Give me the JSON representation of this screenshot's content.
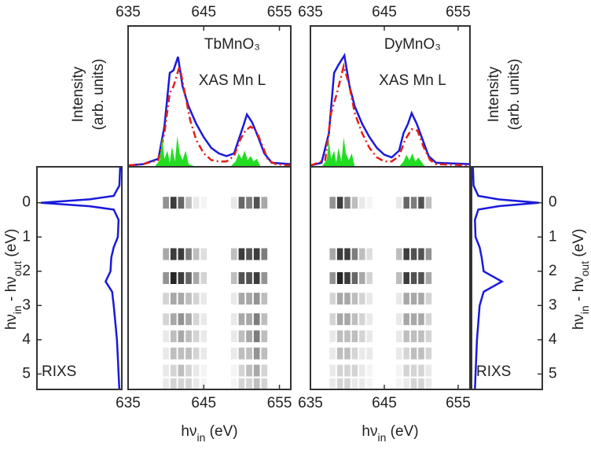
{
  "chart_data": [
    {
      "type": "xas",
      "title": [
        "TbMnO₃",
        "XAS Mn L"
      ],
      "ylabel": [
        "Intensity",
        "(arb. units)"
      ],
      "ylabel_side": "left",
      "xlim": [
        635,
        656.5
      ],
      "ylim": [
        0,
        1.05
      ],
      "xticks": [
        635,
        645,
        655
      ],
      "xtick_side": "top",
      "series": [
        {
          "color": "#1a1adb",
          "dashed": false,
          "fill": false,
          "x": [
            635,
            637,
            639,
            639.8,
            640.5,
            641,
            641.6,
            642.2,
            643,
            644,
            645,
            646,
            647,
            648,
            649,
            649.6,
            650.2,
            650.7,
            651.4,
            652.2,
            653,
            654,
            656.5
          ],
          "values": [
            0.01,
            0.02,
            0.06,
            0.3,
            0.7,
            0.72,
            0.82,
            0.6,
            0.45,
            0.32,
            0.22,
            0.14,
            0.1,
            0.08,
            0.1,
            0.2,
            0.3,
            0.39,
            0.33,
            0.22,
            0.1,
            0.03,
            0.02
          ]
        },
        {
          "color": "#e0201b",
          "dashed": true,
          "fill": false,
          "x": [
            635,
            637,
            639,
            639.8,
            640.5,
            641,
            641.8,
            642.5,
            643.2,
            644,
            645,
            646,
            647,
            648,
            649,
            649.8,
            650.5,
            651.2,
            652,
            652.8,
            653.5,
            654.5,
            656.5
          ],
          "values": [
            0.01,
            0.02,
            0.05,
            0.25,
            0.55,
            0.6,
            0.75,
            0.55,
            0.35,
            0.2,
            0.1,
            0.05,
            0.04,
            0.04,
            0.08,
            0.2,
            0.27,
            0.3,
            0.26,
            0.15,
            0.05,
            0.02,
            0.01
          ]
        },
        {
          "color": "#22dd22",
          "dashed": false,
          "fill": true,
          "x": [
            638.5,
            639.2,
            639.5,
            639.8,
            640.2,
            640.5,
            640.8,
            641.2,
            641.5,
            641.8,
            642.2,
            642.6,
            643,
            644,
            648.5,
            649.2,
            649.6,
            650,
            650.4,
            650.8,
            651.2,
            651.6,
            652,
            652.5
          ],
          "values": [
            0,
            0.05,
            0.22,
            0.06,
            0.12,
            0.03,
            0.15,
            0.04,
            0.23,
            0.1,
            0.05,
            0.12,
            0.02,
            0,
            0,
            0.04,
            0.1,
            0.06,
            0.12,
            0.05,
            0.08,
            0.04,
            0.06,
            0
          ]
        }
      ]
    },
    {
      "type": "heatmap",
      "xlim": [
        635,
        656.5
      ],
      "ylim": [
        -1.05,
        5.45
      ],
      "y_inverted": true,
      "xticks": [
        635,
        645,
        655
      ],
      "xlabel": [
        {
          "text": "hν"
        },
        {
          "text": "in",
          "sub": true
        },
        {
          "text": " (eV)"
        }
      ],
      "x": [
        640,
        641,
        642,
        643,
        644,
        645,
        649,
        650,
        651,
        652,
        653
      ],
      "y": [
        0,
        1.5,
        2.2,
        2.8,
        3.4,
        3.9,
        4.4,
        4.9,
        5.3
      ],
      "z": [
        [
          0.5,
          0.9,
          0.7,
          0.3,
          0.1,
          0.05,
          0.1,
          0.7,
          0.6,
          0.8,
          0.4
        ],
        [
          0.4,
          0.9,
          0.9,
          0.6,
          0.3,
          0.15,
          0.3,
          0.9,
          0.8,
          0.9,
          0.6
        ],
        [
          0.5,
          1.0,
          0.9,
          0.7,
          0.4,
          0.2,
          0.3,
          0.8,
          0.8,
          0.9,
          0.5
        ],
        [
          0.2,
          0.4,
          0.4,
          0.3,
          0.2,
          0.1,
          0.1,
          0.4,
          0.4,
          0.5,
          0.3
        ],
        [
          0.2,
          0.4,
          0.5,
          0.4,
          0.2,
          0.1,
          0.1,
          0.4,
          0.4,
          0.6,
          0.3
        ],
        [
          0.1,
          0.3,
          0.4,
          0.3,
          0.2,
          0.1,
          0.1,
          0.3,
          0.4,
          0.6,
          0.3
        ],
        [
          0.1,
          0.3,
          0.3,
          0.3,
          0.2,
          0.1,
          0.1,
          0.3,
          0.3,
          0.5,
          0.3
        ],
        [
          0.1,
          0.2,
          0.3,
          0.2,
          0.1,
          0.05,
          0.05,
          0.2,
          0.3,
          0.4,
          0.2
        ],
        [
          0.1,
          0.2,
          0.2,
          0.2,
          0.1,
          0.05,
          0.05,
          0.2,
          0.2,
          0.3,
          0.2
        ]
      ]
    },
    {
      "type": "profile",
      "text": "RIXS",
      "color": "#1a1adb",
      "xlim": [
        0,
        1.05
      ],
      "x_inverted": true,
      "ylim": [
        -1.05,
        5.45
      ],
      "y_inverted": true,
      "yticks": [
        0,
        1,
        2,
        3,
        4,
        5
      ],
      "ytick_side": "left",
      "ylabel": [
        {
          "text": "hν"
        },
        {
          "text": "in",
          "sub": true
        },
        {
          "text": " - hν"
        },
        {
          "text": "out",
          "sub": true
        },
        {
          "text": " (eV)"
        }
      ],
      "y": [
        -1.05,
        -0.5,
        -0.2,
        -0.1,
        0,
        0.1,
        0.2,
        0.5,
        1.0,
        1.3,
        1.6,
        2.0,
        2.3,
        2.6,
        3.0,
        3.5,
        4.0,
        4.5,
        5.0,
        5.45
      ],
      "values": [
        0.02,
        0.03,
        0.1,
        0.4,
        1.0,
        0.4,
        0.1,
        0.04,
        0.05,
        0.1,
        0.13,
        0.14,
        0.2,
        0.12,
        0.1,
        0.08,
        0.06,
        0.05,
        0.04,
        0.03
      ]
    },
    {
      "type": "xas",
      "title": [
        "DyMnO₃",
        "XAS Mn L"
      ],
      "ylabel": [
        "Intensity",
        "(arb. units)"
      ],
      "ylabel_side": "right",
      "xlim": [
        635,
        656.6
      ],
      "ylim": [
        0,
        1.05
      ],
      "xticks": [
        635,
        645,
        655
      ],
      "xtick_side": "top",
      "series": [
        {
          "color": "#1a1adb",
          "dashed": false,
          "fill": false,
          "x": [
            635,
            636.5,
            637.5,
            638.2,
            638.8,
            639.6,
            640.3,
            641,
            642,
            643,
            644,
            645,
            646,
            647,
            647.6,
            648.2,
            648.7,
            649.4,
            650.2,
            651,
            652,
            656.6
          ],
          "values": [
            0.01,
            0.03,
            0.25,
            0.7,
            0.76,
            0.83,
            0.6,
            0.45,
            0.32,
            0.22,
            0.14,
            0.09,
            0.07,
            0.12,
            0.25,
            0.32,
            0.4,
            0.32,
            0.2,
            0.08,
            0.03,
            0.02
          ]
        },
        {
          "color": "#e0201b",
          "dashed": true,
          "fill": false,
          "x": [
            635,
            637,
            637.8,
            638.6,
            639.5,
            640.2,
            641,
            642,
            643,
            644,
            645,
            646,
            647,
            647.8,
            648.7,
            649.5,
            650.3,
            651.2,
            652,
            656.6
          ],
          "values": [
            0.01,
            0.05,
            0.4,
            0.55,
            0.75,
            0.62,
            0.4,
            0.25,
            0.14,
            0.07,
            0.04,
            0.04,
            0.08,
            0.2,
            0.28,
            0.27,
            0.15,
            0.05,
            0.02,
            0.01
          ]
        },
        {
          "color": "#22dd22",
          "dashed": false,
          "fill": true,
          "x": [
            636.5,
            637.2,
            637.5,
            637.8,
            638.2,
            638.5,
            638.8,
            639.2,
            639.5,
            639.8,
            640.2,
            640.6,
            641,
            647,
            647.6,
            648,
            648.4,
            648.8,
            649.2,
            649.6,
            650,
            650.5
          ],
          "values": [
            0,
            0.05,
            0.2,
            0.06,
            0.12,
            0.03,
            0.14,
            0.04,
            0.22,
            0.1,
            0.05,
            0.1,
            0,
            0,
            0.04,
            0.09,
            0.05,
            0.1,
            0.04,
            0.07,
            0.04,
            0
          ]
        }
      ]
    },
    {
      "type": "heatmap",
      "xlim": [
        635,
        656.6
      ],
      "ylim": [
        -1.05,
        5.45
      ],
      "y_inverted": true,
      "xticks": [
        635,
        645,
        655
      ],
      "xlabel": [
        {
          "text": "hν"
        },
        {
          "text": "in",
          "sub": true
        },
        {
          "text": " (eV)"
        }
      ],
      "x": [
        638,
        639,
        640,
        641,
        642,
        643,
        647,
        648,
        649,
        650,
        651
      ],
      "y": [
        0,
        1.5,
        2.2,
        2.8,
        3.4,
        3.9,
        4.4,
        4.9,
        5.3
      ],
      "z": [
        [
          0.5,
          0.9,
          0.6,
          0.3,
          0.1,
          0.05,
          0.1,
          0.7,
          0.6,
          0.8,
          0.3
        ],
        [
          0.4,
          0.9,
          0.9,
          0.6,
          0.3,
          0.15,
          0.3,
          0.9,
          0.8,
          0.8,
          0.5
        ],
        [
          0.5,
          1.0,
          0.9,
          0.7,
          0.4,
          0.2,
          0.3,
          0.9,
          0.8,
          0.8,
          0.4
        ],
        [
          0.2,
          0.4,
          0.4,
          0.3,
          0.2,
          0.1,
          0.1,
          0.4,
          0.4,
          0.4,
          0.2
        ],
        [
          0.2,
          0.4,
          0.4,
          0.3,
          0.2,
          0.1,
          0.1,
          0.4,
          0.4,
          0.4,
          0.2
        ],
        [
          0.1,
          0.3,
          0.3,
          0.3,
          0.2,
          0.1,
          0.1,
          0.3,
          0.3,
          0.3,
          0.2
        ],
        [
          0.1,
          0.3,
          0.3,
          0.2,
          0.1,
          0.1,
          0.1,
          0.2,
          0.3,
          0.3,
          0.2
        ],
        [
          0.1,
          0.2,
          0.2,
          0.2,
          0.1,
          0.05,
          0.05,
          0.2,
          0.2,
          0.2,
          0.1
        ],
        [
          0.1,
          0.2,
          0.2,
          0.1,
          0.1,
          0.05,
          0.05,
          0.1,
          0.2,
          0.2,
          0.1
        ]
      ]
    },
    {
      "type": "profile",
      "text": "RIXS",
      "color": "#1a1adb",
      "xlim": [
        0,
        1.05
      ],
      "x_inverted": false,
      "ylim": [
        -1.05,
        5.45
      ],
      "y_inverted": true,
      "yticks": [
        0,
        1,
        2,
        3,
        4,
        5
      ],
      "ytick_side": "right",
      "ylabel": [
        {
          "text": "hν"
        },
        {
          "text": "in",
          "sub": true
        },
        {
          "text": " - hν"
        },
        {
          "text": "out",
          "sub": true
        },
        {
          "text": " (eV)"
        }
      ],
      "y": [
        -1.05,
        -0.5,
        -0.2,
        -0.1,
        0,
        0.1,
        0.2,
        0.5,
        1.0,
        1.3,
        1.6,
        2.0,
        2.3,
        2.6,
        3.0,
        3.5,
        4.0,
        4.5,
        5.0,
        5.45
      ],
      "values": [
        0.02,
        0.03,
        0.1,
        0.4,
        1.0,
        0.4,
        0.1,
        0.05,
        0.06,
        0.12,
        0.15,
        0.18,
        0.45,
        0.18,
        0.12,
        0.1,
        0.08,
        0.07,
        0.06,
        0.05
      ]
    }
  ]
}
